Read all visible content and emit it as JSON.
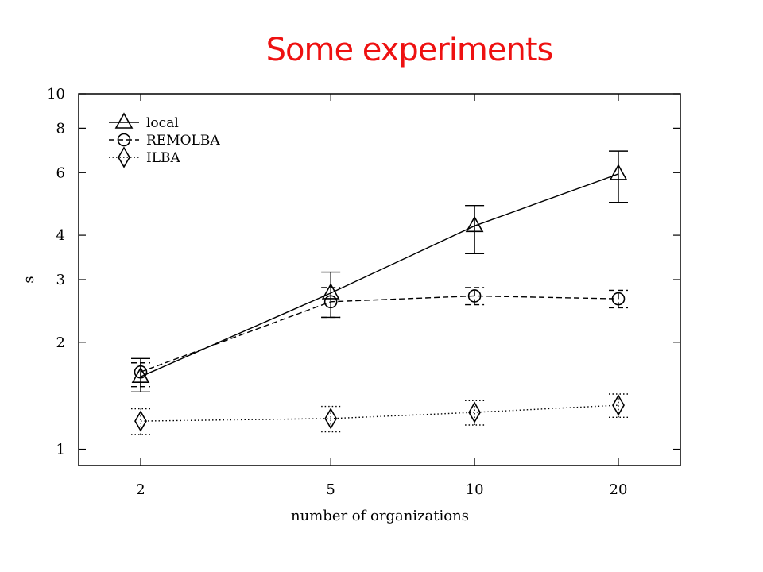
{
  "slide": {
    "title": "Some experiments",
    "title_color": "#ee1111"
  },
  "chart_data": {
    "type": "line",
    "title": "",
    "xlabel": "number of organizations",
    "ylabel": "s",
    "x_scale": "log",
    "y_scale": "log",
    "x": [
      2,
      5,
      10,
      20
    ],
    "x_ticks": [
      "2",
      "5",
      "10",
      "20"
    ],
    "y_ticks": [
      "1",
      "2",
      "3",
      "4",
      "6",
      "8",
      "10"
    ],
    "ylim": [
      0.9,
      10
    ],
    "legend_position": "top-left",
    "series": [
      {
        "name": "local",
        "marker": "triangle",
        "dash": "solid",
        "values": [
          1.6,
          2.75,
          4.25,
          5.95
        ],
        "err_low": [
          1.45,
          2.35,
          3.55,
          4.95
        ],
        "err_high": [
          1.8,
          3.15,
          4.85,
          6.9
        ]
      },
      {
        "name": "REMOLBA",
        "marker": "circle",
        "dash": "dashed",
        "values": [
          1.65,
          2.6,
          2.7,
          2.65
        ],
        "err_low": [
          1.5,
          2.35,
          2.55,
          2.5
        ],
        "err_high": [
          1.75,
          2.85,
          2.85,
          2.8
        ]
      },
      {
        "name": "ILBA",
        "marker": "diamond",
        "dash": "dotted",
        "values": [
          1.2,
          1.22,
          1.27,
          1.33
        ],
        "err_low": [
          1.1,
          1.12,
          1.17,
          1.23
        ],
        "err_high": [
          1.3,
          1.32,
          1.37,
          1.43
        ]
      }
    ]
  }
}
